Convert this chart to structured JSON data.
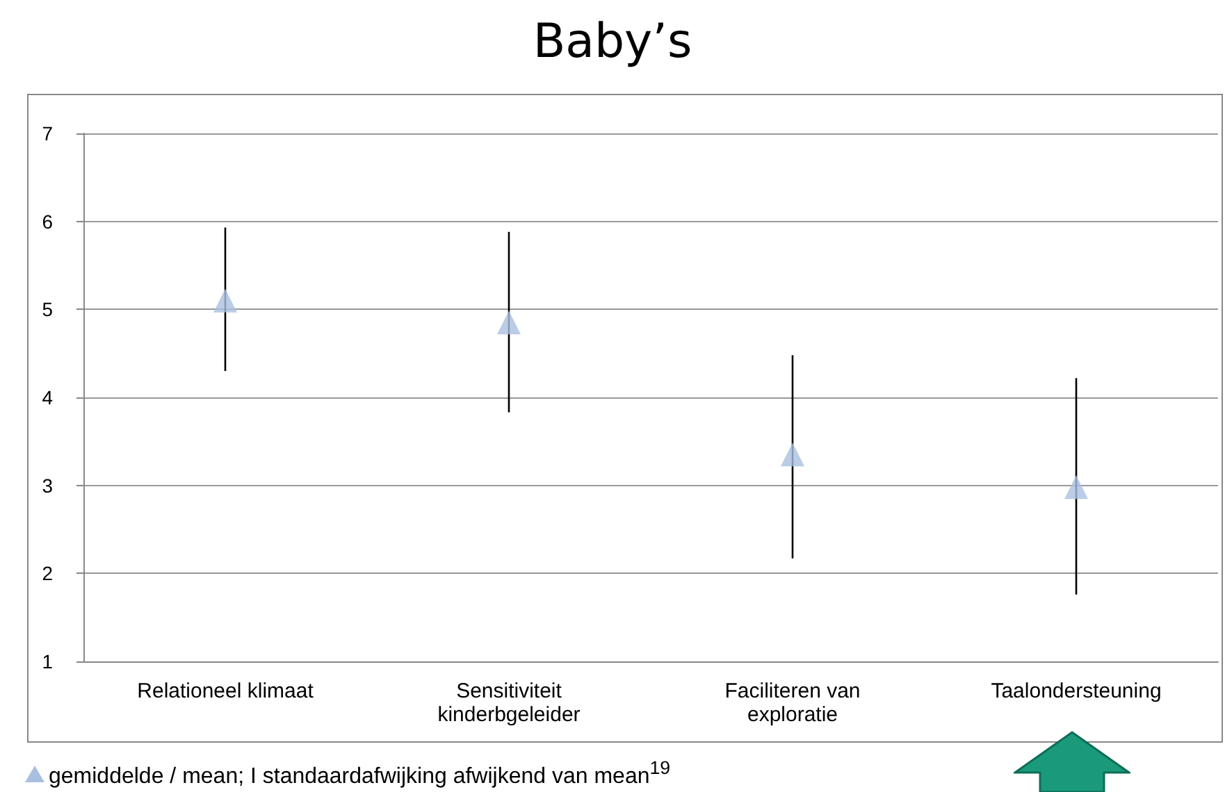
{
  "chart_data": {
    "type": "scatter",
    "title": "Baby’s",
    "categories": [
      "Relationeel klimaat",
      "Sensitiviteit\nkinderbgeleider",
      "Faciliteren van\nexploratie",
      "Taalondersteuning"
    ],
    "series": [
      {
        "color": "#a9bfe0",
        "values": [
          5.1,
          4.85,
          3.35,
          2.98
        ],
        "errors": [
          [
            4.3,
            5.93
          ],
          [
            3.83,
            5.88
          ],
          [
            2.17,
            4.48
          ],
          [
            1.76,
            4.22
          ]
        ]
      }
    ],
    "ylim": [
      1,
      7
    ],
    "yticks": [
      1,
      2,
      3,
      4,
      5,
      6,
      7
    ],
    "grid": "y",
    "marker": "triangle",
    "annotations": [
      "gemiddelde / mean; I standaardafwijking afwijkend van mean$^{19}$"
    ]
  }
}
